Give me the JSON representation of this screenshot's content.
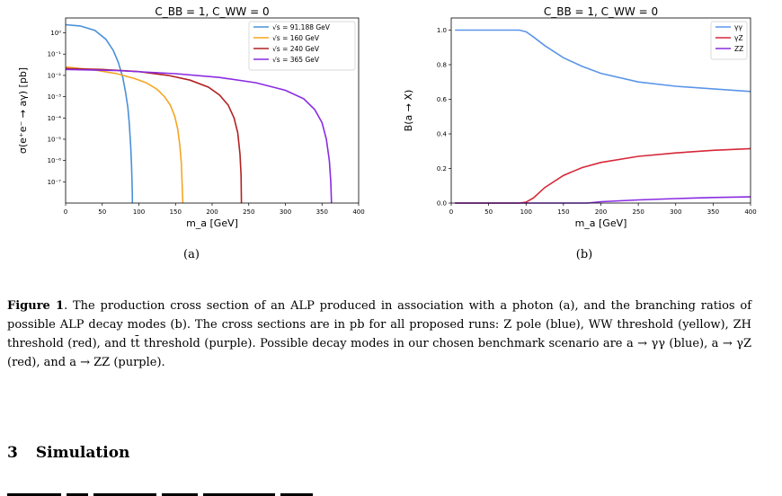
{
  "figure": {
    "panel_a": {
      "caption": "(a)"
    },
    "panel_b": {
      "caption": "(b)"
    },
    "caption": {
      "label": "Figure 1",
      "text": ". The production cross section of an ALP produced in association with a photon (a), and the branching ratios of possible ALP decay modes (b). The cross sections are in pb for all proposed runs: Z pole (blue), WW threshold (yellow), ZH threshold (red), and tt̄ threshold (purple). Possible decay modes in our chosen benchmark scenario are a → γγ (blue), a → γZ (red), and a → ZZ (purple)."
    }
  },
  "section": {
    "number": "3",
    "title": "Simulation"
  },
  "colors": {
    "blue": "#4a90d9",
    "yellow": "#f5a623",
    "red": "#b22222",
    "purple": "#8a2be2",
    "bred": "#d62839",
    "bblue": "#5b95e8",
    "bpurple": "#8a2be2"
  },
  "chart_data": [
    {
      "type": "line",
      "title": "C_BB = 1,  C_WW = 0",
      "xlabel": "m_a [GeV]",
      "ylabel": "σ(e⁺e⁻ → aγ) [pb]",
      "xlim": [
        0,
        400
      ],
      "ylim": [
        1e-08,
        5
      ],
      "yscale": "log",
      "xticks": [
        0,
        50,
        100,
        150,
        200,
        250,
        300,
        350,
        400
      ],
      "yticks": [
        {
          "v": 1,
          "label": "10⁰"
        },
        {
          "v": 0.1,
          "label": "10⁻¹"
        },
        {
          "v": 0.01,
          "label": "10⁻²"
        },
        {
          "v": 0.001,
          "label": "10⁻³"
        },
        {
          "v": 0.0001,
          "label": "10⁻⁴"
        },
        {
          "v": 1e-05,
          "label": "10⁻⁵"
        },
        {
          "v": 1e-06,
          "label": "10⁻⁶"
        },
        {
          "v": 1e-07,
          "label": "10⁻⁷"
        }
      ],
      "legend_position": "top-right",
      "series": [
        {
          "name": "√s = 91.188 GeV",
          "color": "#4a90d9",
          "x": [
            0,
            20,
            40,
            55,
            65,
            72,
            78,
            82,
            85,
            87,
            89,
            90,
            91,
            91.188
          ],
          "y": [
            2.4,
            2.1,
            1.3,
            0.5,
            0.15,
            0.04,
            0.008,
            0.0015,
            0.0003,
            5e-05,
            4e-06,
            5e-07,
            3e-08,
            1e-08
          ]
        },
        {
          "name": "√s = 160 GeV",
          "color": "#f5a623",
          "x": [
            0,
            40,
            70,
            95,
            110,
            125,
            135,
            143,
            149,
            153,
            156,
            158,
            159,
            160
          ],
          "y": [
            0.025,
            0.018,
            0.012,
            0.007,
            0.0045,
            0.0022,
            0.001,
            0.0004,
            0.00012,
            3e-05,
            5e-06,
            7e-07,
            8e-08,
            1e-08
          ]
        },
        {
          "name": "√s = 240 GeV",
          "color": "#b22222",
          "x": [
            0,
            50,
            100,
            140,
            170,
            195,
            210,
            222,
            230,
            235,
            238,
            239.5,
            240
          ],
          "y": [
            0.021,
            0.019,
            0.015,
            0.01,
            0.006,
            0.0028,
            0.0012,
            0.0004,
            0.0001,
            2e-05,
            2e-06,
            2e-07,
            1e-08
          ]
        },
        {
          "name": "√s = 365 GeV",
          "color": "#8a2be2",
          "x": [
            0,
            70,
            150,
            210,
            260,
            300,
            325,
            340,
            350,
            356,
            360,
            362,
            363
          ],
          "y": [
            0.019,
            0.017,
            0.012,
            0.008,
            0.0045,
            0.002,
            0.0008,
            0.00025,
            6e-05,
            1e-05,
            1e-06,
            1e-07,
            1e-08
          ]
        }
      ]
    },
    {
      "type": "line",
      "title": "C_BB = 1,  C_WW = 0",
      "xlabel": "m_a [GeV]",
      "ylabel": "B(a → X)",
      "xlim": [
        0,
        400
      ],
      "ylim": [
        0,
        1.07
      ],
      "xticks": [
        0,
        50,
        100,
        150,
        200,
        250,
        300,
        350,
        400
      ],
      "yticks": [
        0.0,
        0.2,
        0.4,
        0.6,
        0.8,
        1.0
      ],
      "legend_position": "top-right",
      "series": [
        {
          "name": "γγ",
          "color": "#5b95e8",
          "x": [
            5,
            50,
            91,
            100,
            110,
            125,
            150,
            175,
            200,
            250,
            300,
            350,
            400
          ],
          "y": [
            1.0,
            1.0,
            1.0,
            0.99,
            0.96,
            0.91,
            0.84,
            0.79,
            0.75,
            0.7,
            0.675,
            0.66,
            0.645
          ]
        },
        {
          "name": "γZ",
          "color": "#d62839",
          "x": [
            5,
            50,
            91,
            100,
            110,
            125,
            150,
            175,
            200,
            250,
            300,
            350,
            400
          ],
          "y": [
            0,
            0,
            0,
            0.005,
            0.03,
            0.09,
            0.16,
            0.205,
            0.235,
            0.27,
            0.29,
            0.305,
            0.315
          ]
        },
        {
          "name": "ZZ",
          "color": "#8a2be2",
          "x": [
            5,
            50,
            100,
            150,
            182,
            200,
            250,
            300,
            350,
            400
          ],
          "y": [
            0,
            0,
            0,
            0,
            0.0,
            0.008,
            0.018,
            0.026,
            0.032,
            0.036
          ]
        }
      ]
    }
  ]
}
